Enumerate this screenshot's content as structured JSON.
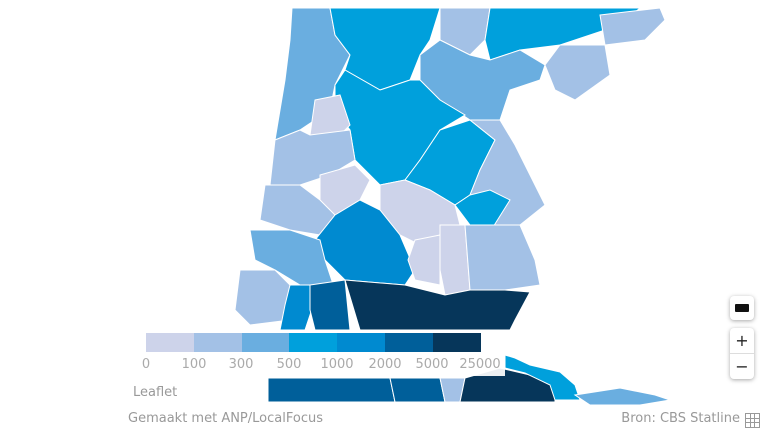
{
  "legend": {
    "ticks": [
      "0",
      "100",
      "300",
      "500",
      "1000",
      "2000",
      "5000",
      "25000"
    ],
    "colors": [
      "#cdd3ea",
      "#a3c1e6",
      "#6aaee0",
      "#00a0dc",
      "#008ad0",
      "#005f9a",
      "#06365a"
    ]
  },
  "attribution": "Leaflet",
  "footer": {
    "made_with": "Gemaakt met ANP/LocalFocus",
    "source": "Bron: CBS Statline"
  },
  "controls": {
    "zoom_in": "+",
    "zoom_out": "−"
  },
  "icons": [
    "keyboard-icon",
    "table-icon"
  ]
}
